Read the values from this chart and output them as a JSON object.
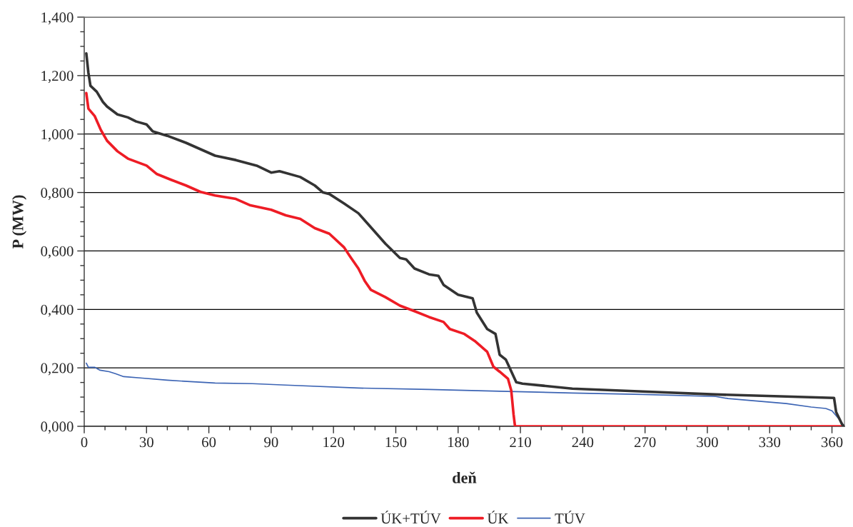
{
  "chart_data": {
    "type": "line",
    "xlabel": "deň",
    "ylabel": "P (MW)",
    "xlim": [
      0,
      366
    ],
    "ylim": [
      0,
      1.4
    ],
    "xticks": [
      0,
      {
        "value": 10,
        "label": null
      },
      {
        "value": 20,
        "label": null
      },
      30,
      {
        "value": 40,
        "label": null
      },
      {
        "value": 50,
        "label": null
      },
      60,
      {
        "value": 70,
        "label": null
      },
      {
        "value": 80,
        "label": null
      },
      90,
      {
        "value": 100,
        "label": null
      },
      {
        "value": 110,
        "label": null
      },
      120,
      {
        "value": 130,
        "label": null
      },
      {
        "value": 140,
        "label": null
      },
      150,
      {
        "value": 160,
        "label": null
      },
      {
        "value": 170,
        "label": null
      },
      180,
      {
        "value": 190,
        "label": null
      },
      {
        "value": 200,
        "label": null
      },
      210,
      {
        "value": 220,
        "label": null
      },
      {
        "value": 230,
        "label": null
      },
      240,
      {
        "value": 250,
        "label": null
      },
      {
        "value": 260,
        "label": null
      },
      270,
      {
        "value": 280,
        "label": null
      },
      {
        "value": 290,
        "label": null
      },
      300,
      {
        "value": 310,
        "label": null
      },
      {
        "value": 320,
        "label": null
      },
      330,
      {
        "value": 340,
        "label": null
      },
      {
        "value": 350,
        "label": null
      },
      360
    ],
    "yticks": [
      {
        "value": 0,
        "label": "0,000"
      },
      {
        "value": 0.05,
        "label": null
      },
      {
        "value": 0.1,
        "label": null
      },
      {
        "value": 0.15,
        "label": null
      },
      {
        "value": 0.2,
        "label": "0,200"
      },
      {
        "value": 0.25,
        "label": null
      },
      {
        "value": 0.3,
        "label": null
      },
      {
        "value": 0.35,
        "label": null
      },
      {
        "value": 0.4,
        "label": "0,400"
      },
      {
        "value": 0.45,
        "label": null
      },
      {
        "value": 0.5,
        "label": null
      },
      {
        "value": 0.55,
        "label": null
      },
      {
        "value": 0.6,
        "label": "0,600"
      },
      {
        "value": 0.65,
        "label": null
      },
      {
        "value": 0.7,
        "label": null
      },
      {
        "value": 0.75,
        "label": null
      },
      {
        "value": 0.8,
        "label": "0,800"
      },
      {
        "value": 0.85,
        "label": null
      },
      {
        "value": 0.9,
        "label": null
      },
      {
        "value": 0.95,
        "label": null
      },
      {
        "value": 1.0,
        "label": "1,000"
      },
      {
        "value": 1.05,
        "label": null
      },
      {
        "value": 1.1,
        "label": null
      },
      {
        "value": 1.15,
        "label": null
      },
      {
        "value": 1.2,
        "label": "1,200"
      },
      {
        "value": 1.25,
        "label": null
      },
      {
        "value": 1.3,
        "label": null
      },
      {
        "value": 1.35,
        "label": null
      },
      {
        "value": 1.4,
        "label": "1,400"
      }
    ],
    "grid": "y",
    "legend": "bottom",
    "marker": "none",
    "line_style": "solid",
    "series": [
      {
        "name": "ÚK+TÚV",
        "color": "#333333",
        "x": [
          1,
          2,
          3,
          6,
          9,
          11,
          16,
          21,
          25,
          30,
          33,
          40,
          49,
          56,
          63,
          73,
          83,
          90,
          94,
          104,
          111,
          115,
          118,
          125,
          132,
          138,
          145,
          152,
          155,
          159,
          166,
          170.5,
          173,
          180,
          187,
          189,
          194,
          198,
          200,
          203,
          208,
          211,
          221,
          235,
          269,
          304,
          338,
          361,
          362,
          365,
          366
        ],
        "values": [
          1.276,
          1.21,
          1.165,
          1.145,
          1.11,
          1.094,
          1.067,
          1.057,
          1.043,
          1.033,
          1.009,
          0.994,
          0.97,
          0.948,
          0.926,
          0.911,
          0.892,
          0.868,
          0.873,
          0.853,
          0.824,
          0.8,
          0.795,
          0.763,
          0.729,
          0.681,
          0.625,
          0.576,
          0.571,
          0.54,
          0.52,
          0.515,
          0.484,
          0.45,
          0.438,
          0.389,
          0.333,
          0.316,
          0.245,
          0.228,
          0.151,
          0.146,
          0.139,
          0.129,
          0.119,
          0.109,
          0.102,
          0.097,
          0.049,
          0.005,
          0
        ]
      },
      {
        "name": "ÚK",
        "color": "#ee1c25",
        "x": [
          1,
          2,
          5,
          8,
          11,
          16,
          21,
          30,
          35,
          42,
          49,
          56,
          63,
          73,
          80,
          90,
          97,
          104,
          111,
          118,
          125,
          128,
          132,
          135,
          138,
          145,
          152,
          159,
          166,
          173,
          176,
          183,
          188,
          194,
          197,
          200,
          204,
          205.6,
          206.7,
          207.4,
          366
        ],
        "values": [
          1.14,
          1.087,
          1.062,
          1.014,
          0.977,
          0.941,
          0.916,
          0.892,
          0.863,
          0.843,
          0.824,
          0.802,
          0.79,
          0.778,
          0.756,
          0.741,
          0.722,
          0.71,
          0.678,
          0.659,
          0.613,
          0.581,
          0.54,
          0.498,
          0.467,
          0.442,
          0.413,
          0.394,
          0.374,
          0.357,
          0.333,
          0.316,
          0.292,
          0.255,
          0.204,
          0.187,
          0.163,
          0.122,
          0.041,
          0,
          0
        ]
      },
      {
        "name": "TÚV",
        "color": "#3c64b4",
        "x": [
          1,
          2,
          5,
          7.6,
          12,
          15,
          19,
          28,
          40,
          51,
          63,
          81,
          97,
          132,
          166,
          200,
          235,
          269,
          304,
          310,
          338,
          350,
          357,
          360,
          363.5,
          366
        ],
        "values": [
          0.216,
          0.202,
          0.202,
          0.192,
          0.187,
          0.18,
          0.17,
          0.165,
          0.158,
          0.153,
          0.148,
          0.146,
          0.141,
          0.131,
          0.126,
          0.12,
          0.114,
          0.109,
          0.102,
          0.095,
          0.078,
          0.066,
          0.061,
          0.053,
          0.024,
          0
        ]
      }
    ]
  }
}
